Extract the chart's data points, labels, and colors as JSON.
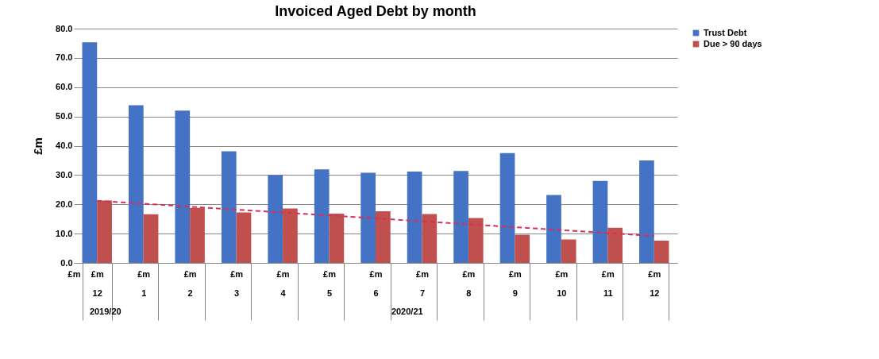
{
  "chart_data": {
    "type": "bar",
    "title": "Invoiced Aged Debt by month",
    "ylabel": "£m",
    "categories": [
      "12",
      "1",
      "2",
      "3",
      "4",
      "5",
      "6",
      "7",
      "8",
      "9",
      "10",
      "11",
      "12"
    ],
    "series": [
      {
        "name": "Trust Debt",
        "color": "#4472c4",
        "values": [
          75.3,
          53.8,
          52.0,
          38.1,
          30.0,
          31.9,
          30.8,
          31.2,
          31.4,
          37.5,
          23.2,
          28.0,
          35.0
        ]
      },
      {
        "name": "Due > 90 days",
        "color": "#c0504d",
        "values": [
          21.3,
          16.6,
          18.8,
          17.2,
          18.6,
          16.8,
          17.6,
          16.7,
          15.3,
          9.6,
          8.0,
          12.0,
          7.6
        ]
      },
      {
        "type": "line",
        "color": "#d9305a",
        "values": [
          21.2,
          20.2,
          19.2,
          18.2,
          17.2,
          16.2,
          15.2,
          14.2,
          13.2,
          12.2,
          11.2,
          10.2,
          9.2
        ]
      }
    ],
    "ylim": [
      0,
      80
    ],
    "yticks": [
      {
        "value": 0,
        "label": "0.0"
      },
      {
        "value": 10,
        "label": "10.0"
      },
      {
        "value": 20,
        "label": "20.0"
      },
      {
        "value": 30,
        "label": "30.0"
      },
      {
        "value": 40,
        "label": "40.0"
      },
      {
        "value": 50,
        "label": "50.0"
      },
      {
        "value": 60,
        "label": "60.0"
      },
      {
        "value": 70,
        "label": "70.0"
      },
      {
        "value": 80,
        "label": "80.0"
      }
    ],
    "grid": "y",
    "legend": "right",
    "line_style": "dashed",
    "marker": "none",
    "annotations": [
      "£m",
      "2019/20",
      "2020/21"
    ]
  }
}
